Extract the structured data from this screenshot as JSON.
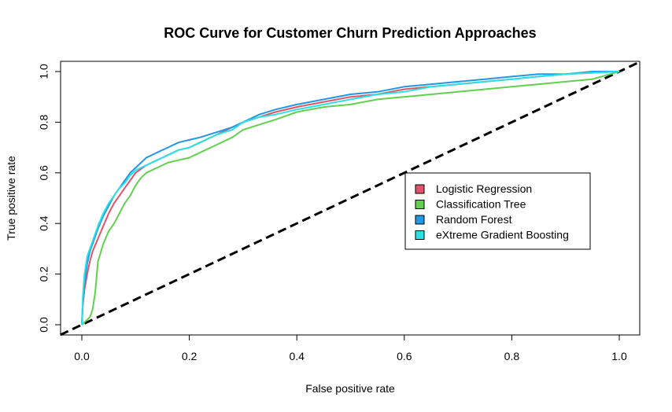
{
  "chart_data": {
    "type": "line",
    "title": "ROC Curve for Customer Churn Prediction Approaches",
    "xlabel": "False positive rate",
    "ylabel": "True positive rate",
    "xlim": [
      0.0,
      1.0
    ],
    "ylim": [
      0.0,
      1.0
    ],
    "x_ticks": [
      "0.0",
      "0.2",
      "0.4",
      "0.6",
      "0.8",
      "1.0"
    ],
    "y_ticks": [
      "0.0",
      "0.2",
      "0.4",
      "0.6",
      "0.8",
      "1.0"
    ],
    "grid": false,
    "legend_position": "center-right",
    "diagonal": {
      "style": "dashed",
      "color": "#000000",
      "x": [
        0.0,
        1.0
      ],
      "y": [
        0.0,
        1.0
      ]
    },
    "series": [
      {
        "name": "Logistic Regression",
        "color": "#DF536B",
        "x": [
          0.0,
          0.002,
          0.005,
          0.01,
          0.015,
          0.02,
          0.03,
          0.04,
          0.05,
          0.06,
          0.07,
          0.08,
          0.09,
          0.1,
          0.12,
          0.14,
          0.16,
          0.18,
          0.2,
          0.22,
          0.25,
          0.28,
          0.3,
          0.33,
          0.36,
          0.4,
          0.45,
          0.5,
          0.55,
          0.6,
          0.65,
          0.7,
          0.75,
          0.8,
          0.85,
          0.9,
          0.95,
          1.0
        ],
        "y": [
          0.0,
          0.08,
          0.14,
          0.2,
          0.25,
          0.29,
          0.34,
          0.39,
          0.44,
          0.48,
          0.51,
          0.54,
          0.57,
          0.6,
          0.63,
          0.65,
          0.67,
          0.69,
          0.7,
          0.72,
          0.75,
          0.78,
          0.8,
          0.82,
          0.84,
          0.86,
          0.88,
          0.9,
          0.91,
          0.93,
          0.94,
          0.95,
          0.96,
          0.97,
          0.98,
          0.99,
          0.995,
          1.0
        ]
      },
      {
        "name": "Classification Tree",
        "color": "#61D04F",
        "x": [
          0.0,
          0.005,
          0.01,
          0.015,
          0.02,
          0.025,
          0.03,
          0.04,
          0.05,
          0.06,
          0.07,
          0.08,
          0.09,
          0.1,
          0.11,
          0.12,
          0.14,
          0.16,
          0.18,
          0.2,
          0.22,
          0.25,
          0.28,
          0.3,
          0.33,
          0.36,
          0.4,
          0.45,
          0.5,
          0.55,
          0.6,
          0.65,
          0.7,
          0.75,
          0.8,
          0.85,
          0.9,
          0.95,
          1.0
        ],
        "y": [
          0.0,
          0.01,
          0.02,
          0.03,
          0.06,
          0.13,
          0.25,
          0.32,
          0.37,
          0.4,
          0.44,
          0.48,
          0.51,
          0.55,
          0.58,
          0.6,
          0.62,
          0.64,
          0.65,
          0.66,
          0.68,
          0.71,
          0.74,
          0.77,
          0.79,
          0.81,
          0.84,
          0.86,
          0.87,
          0.89,
          0.9,
          0.91,
          0.92,
          0.93,
          0.94,
          0.95,
          0.96,
          0.97,
          1.0
        ]
      },
      {
        "name": "Random Forest",
        "color": "#2297E6",
        "x": [
          0.0,
          0.002,
          0.005,
          0.01,
          0.015,
          0.02,
          0.03,
          0.04,
          0.05,
          0.06,
          0.07,
          0.08,
          0.09,
          0.1,
          0.12,
          0.14,
          0.16,
          0.18,
          0.2,
          0.22,
          0.25,
          0.28,
          0.3,
          0.33,
          0.36,
          0.4,
          0.45,
          0.5,
          0.55,
          0.6,
          0.65,
          0.7,
          0.75,
          0.8,
          0.85,
          0.9,
          0.95,
          1.0
        ],
        "y": [
          0.0,
          0.1,
          0.17,
          0.24,
          0.29,
          0.32,
          0.38,
          0.43,
          0.47,
          0.51,
          0.54,
          0.57,
          0.6,
          0.62,
          0.66,
          0.68,
          0.7,
          0.72,
          0.73,
          0.74,
          0.76,
          0.78,
          0.8,
          0.83,
          0.85,
          0.87,
          0.89,
          0.91,
          0.92,
          0.94,
          0.95,
          0.96,
          0.97,
          0.98,
          0.99,
          0.99,
          1.0,
          1.0
        ]
      },
      {
        "name": "eXtreme Gradient Boosting",
        "color": "#28E2E5",
        "x": [
          0.0,
          0.002,
          0.005,
          0.01,
          0.015,
          0.02,
          0.03,
          0.04,
          0.05,
          0.06,
          0.07,
          0.08,
          0.09,
          0.1,
          0.12,
          0.14,
          0.16,
          0.18,
          0.2,
          0.22,
          0.25,
          0.28,
          0.3,
          0.33,
          0.36,
          0.4,
          0.45,
          0.5,
          0.55,
          0.6,
          0.65,
          0.7,
          0.75,
          0.8,
          0.85,
          0.9,
          0.95,
          1.0
        ],
        "y": [
          0.0,
          0.12,
          0.2,
          0.27,
          0.3,
          0.33,
          0.39,
          0.44,
          0.48,
          0.51,
          0.54,
          0.56,
          0.59,
          0.61,
          0.63,
          0.65,
          0.67,
          0.69,
          0.7,
          0.72,
          0.75,
          0.77,
          0.8,
          0.82,
          0.83,
          0.85,
          0.87,
          0.89,
          0.91,
          0.92,
          0.94,
          0.95,
          0.96,
          0.97,
          0.98,
          0.99,
          0.995,
          1.0
        ]
      }
    ]
  }
}
